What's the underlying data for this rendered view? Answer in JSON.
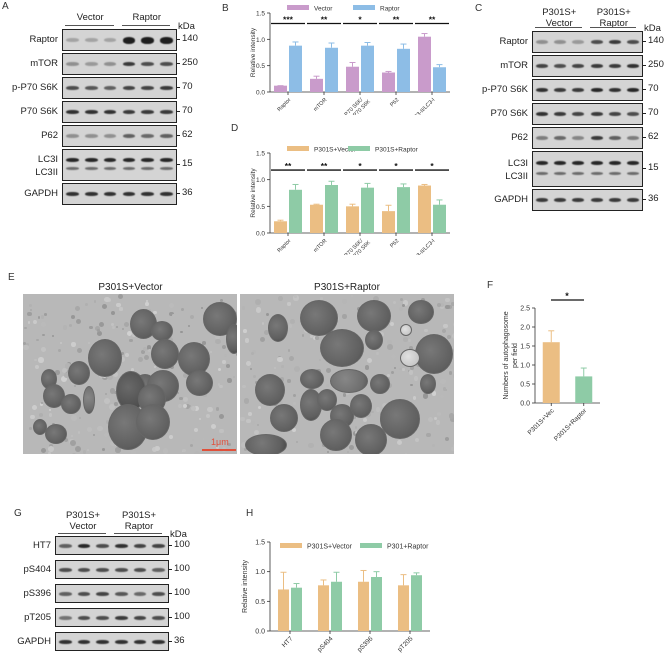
{
  "panels": {
    "A": {
      "label": "A",
      "groups": [
        "Vector",
        "Raptor"
      ],
      "unit": "kDa",
      "rows": [
        {
          "name": "Raptor",
          "mw": "140",
          "intensity": [
            0.25,
            0.25,
            0.25,
            0.95,
            0.95,
            0.95
          ]
        },
        {
          "name": "mTOR",
          "mw": "250",
          "intensity": [
            0.35,
            0.3,
            0.35,
            0.8,
            0.7,
            0.7
          ]
        },
        {
          "name": "p-P70 S6K",
          "mw": "70",
          "intensity": [
            0.7,
            0.65,
            0.6,
            0.75,
            0.75,
            0.8
          ]
        },
        {
          "name": "P70 S6K",
          "mw": "70",
          "intensity": [
            0.85,
            0.85,
            0.85,
            0.8,
            0.8,
            0.8
          ]
        },
        {
          "name": "P62",
          "mw": "62",
          "intensity": [
            0.35,
            0.35,
            0.35,
            0.6,
            0.55,
            0.6
          ]
        },
        {
          "name": "LC3I\nLC3II",
          "mw": "15",
          "intensity": [
            0.9,
            0.9,
            0.9,
            0.9,
            0.9,
            0.9
          ]
        },
        {
          "name": "GAPDH",
          "mw": "36",
          "intensity": [
            0.85,
            0.85,
            0.85,
            0.85,
            0.85,
            0.85
          ]
        }
      ]
    },
    "B": {
      "label": "B"
    },
    "C": {
      "label": "C",
      "groups": [
        "P301S+\nVector",
        "P301S+\nRaptor"
      ],
      "unit": "kDa",
      "rows": [
        {
          "name": "Raptor",
          "mw": "140",
          "intensity": [
            0.35,
            0.35,
            0.3,
            0.7,
            0.8,
            0.7
          ]
        },
        {
          "name": "mTOR",
          "mw": "250",
          "intensity": [
            0.75,
            0.7,
            0.75,
            0.8,
            0.8,
            0.85
          ]
        },
        {
          "name": "p-P70 S6K",
          "mw": "70",
          "intensity": [
            0.85,
            0.8,
            0.8,
            0.9,
            0.85,
            0.9
          ]
        },
        {
          "name": "P70 S6K",
          "mw": "70",
          "intensity": [
            0.85,
            0.8,
            0.75,
            0.8,
            0.75,
            0.7
          ]
        },
        {
          "name": "P62",
          "mw": "62",
          "intensity": [
            0.45,
            0.55,
            0.4,
            0.8,
            0.6,
            0.45
          ]
        },
        {
          "name": "LC3I\nLC3II",
          "mw": "15",
          "intensity": [
            0.9,
            0.9,
            0.9,
            0.9,
            0.9,
            0.9
          ]
        },
        {
          "name": "GAPDH",
          "mw": "36",
          "intensity": [
            0.8,
            0.8,
            0.8,
            0.8,
            0.8,
            0.8
          ]
        }
      ]
    },
    "D": {
      "label": "D"
    },
    "E": {
      "label": "E",
      "images": [
        {
          "title": "P301S+Vector",
          "scalebar": "1μm"
        },
        {
          "title": "P301S+Raptor",
          "scalebar": ""
        }
      ]
    },
    "F": {
      "label": "F"
    },
    "G": {
      "label": "G",
      "groups": [
        "P301S+\nVector",
        "P301S+\nRaptor"
      ],
      "unit": "kDa",
      "rows": [
        {
          "name": "HT7",
          "mw": "100",
          "intensity": [
            0.6,
            0.9,
            0.7,
            0.85,
            0.75,
            0.75
          ]
        },
        {
          "name": "pS404",
          "mw": "100",
          "intensity": [
            0.7,
            0.7,
            0.7,
            0.7,
            0.7,
            0.6
          ]
        },
        {
          "name": "pS396",
          "mw": "100",
          "intensity": [
            0.6,
            0.7,
            0.75,
            0.65,
            0.55,
            0.7
          ]
        },
        {
          "name": "pT205",
          "mw": "100",
          "intensity": [
            0.5,
            0.7,
            0.7,
            0.8,
            0.75,
            0.7
          ]
        },
        {
          "name": "GAPDH",
          "mw": "36",
          "intensity": [
            0.85,
            0.85,
            0.85,
            0.85,
            0.85,
            0.85
          ]
        }
      ]
    },
    "H": {
      "label": "H"
    }
  },
  "chart_data": [
    {
      "id": "B",
      "type": "bar",
      "title": "",
      "xlabel": "",
      "ylabel": "Relative intensity",
      "ylim": [
        0,
        1.5
      ],
      "yticks": [
        "0.0",
        "0.5",
        "1.0",
        "1.5"
      ],
      "categories": [
        "Raptor",
        "mTOR",
        "p-P70 S6K/\nP70 S6K",
        "P62",
        "LC3-II/LC3-I"
      ],
      "series": [
        {
          "name": "Vector",
          "color": "#c99bcb",
          "values": [
            0.12,
            0.25,
            0.48,
            0.37,
            1.05
          ],
          "errors": [
            0.0,
            0.05,
            0.08,
            0.02,
            0.06
          ]
        },
        {
          "name": "Raptor",
          "color": "#8dbde6",
          "values": [
            0.88,
            0.84,
            0.88,
            0.82,
            0.47
          ],
          "errors": [
            0.07,
            0.09,
            0.06,
            0.09,
            0.05
          ]
        }
      ],
      "significance": [
        "***",
        "**",
        "*",
        "**",
        "**"
      ],
      "legend_position": "top"
    },
    {
      "id": "D",
      "type": "bar",
      "title": "",
      "xlabel": "",
      "ylabel": "Relative intensity",
      "ylim": [
        0,
        1.5
      ],
      "yticks": [
        "0.0",
        "0.5",
        "1.0",
        "1.5"
      ],
      "categories": [
        "Raptor",
        "mTOR",
        "p-P70 S6K/\nP70 S6K",
        "P62",
        "LC3-II/LC3-I"
      ],
      "series": [
        {
          "name": "P301S+Vector",
          "color": "#ebbe83",
          "values": [
            0.22,
            0.53,
            0.5,
            0.41,
            0.89
          ],
          "errors": [
            0.02,
            0.01,
            0.04,
            0.11,
            0.02
          ]
        },
        {
          "name": "P301S+Raptor",
          "color": "#8ecba6",
          "values": [
            0.81,
            0.9,
            0.85,
            0.86,
            0.53
          ],
          "errors": [
            0.1,
            0.07,
            0.08,
            0.06,
            0.09
          ]
        }
      ],
      "significance": [
        "**",
        "**",
        "*",
        "*",
        "*"
      ],
      "legend_position": "top"
    },
    {
      "id": "F",
      "type": "bar",
      "title": "",
      "xlabel": "",
      "ylabel": "Numbers of autophagosome\nper field",
      "ylim": [
        0,
        2.5
      ],
      "yticks": [
        "0.0",
        "0.5",
        "1.0",
        "1.5",
        "2.0",
        "2.5"
      ],
      "categories": [
        "P301S+Vec",
        "P301S+Raptor"
      ],
      "values": [
        1.6,
        0.7
      ],
      "errors": [
        0.3,
        0.22
      ],
      "colors": [
        "#ebbe83",
        "#8ecba6"
      ],
      "significance": [
        "*"
      ]
    },
    {
      "id": "H",
      "type": "bar",
      "title": "",
      "xlabel": "",
      "ylabel": "Relative intensity",
      "ylim": [
        0,
        1.5
      ],
      "yticks": [
        "0.0",
        "0.5",
        "1.0",
        "1.5"
      ],
      "categories": [
        "HT7",
        "pS404",
        "pS396",
        "pT205"
      ],
      "series": [
        {
          "name": "P301S+Vector",
          "color": "#ebbe83",
          "values": [
            0.7,
            0.77,
            0.83,
            0.77
          ],
          "errors": [
            0.29,
            0.09,
            0.19,
            0.18
          ]
        },
        {
          "name": "P301+Raptor",
          "color": "#8ecba6",
          "values": [
            0.73,
            0.83,
            0.91,
            0.94
          ],
          "errors": [
            0.07,
            0.16,
            0.09,
            0.04
          ]
        }
      ],
      "legend_position": "top"
    }
  ]
}
